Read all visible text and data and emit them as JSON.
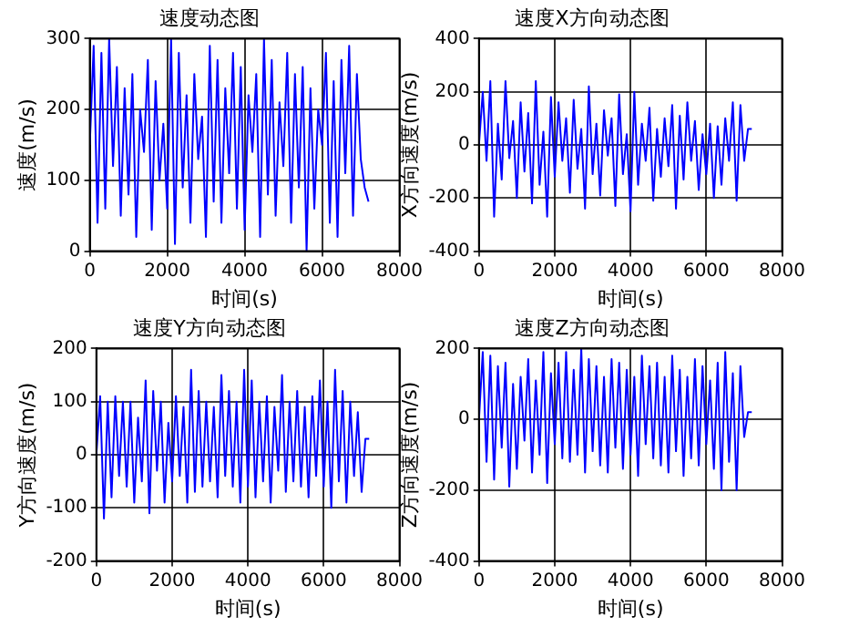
{
  "chart_data": [
    {
      "type": "line",
      "title": "速度动态图",
      "xlabel": "时间(s)",
      "ylabel": "速度(m/s)",
      "xlim": [
        0,
        8000
      ],
      "xticks": [
        0,
        2000,
        4000,
        6000,
        8000
      ],
      "ylim": [
        0,
        300
      ],
      "yticks": [
        0,
        100,
        200,
        300
      ],
      "grid": true,
      "legend": false,
      "marker": "none",
      "line_style": "solid",
      "x": [
        0,
        100,
        200,
        300,
        400,
        500,
        600,
        700,
        800,
        900,
        1000,
        1100,
        1200,
        1300,
        1400,
        1500,
        1600,
        1700,
        1800,
        1900,
        2000,
        2100,
        2200,
        2300,
        2400,
        2500,
        2600,
        2700,
        2800,
        2900,
        3000,
        3100,
        3200,
        3300,
        3400,
        3500,
        3600,
        3700,
        3800,
        3900,
        4000,
        4100,
        4200,
        4300,
        4400,
        4500,
        4600,
        4700,
        4800,
        4900,
        5000,
        5100,
        5200,
        5300,
        5400,
        5500,
        5600,
        5700,
        5800,
        5900,
        6000,
        6100,
        6200,
        6300,
        6400,
        6500,
        6600,
        6700,
        6800,
        6900,
        7000,
        7100,
        7200
      ],
      "series": [
        {
          "color": "#0000ff",
          "values": [
            150,
            290,
            40,
            280,
            60,
            300,
            120,
            260,
            50,
            230,
            80,
            250,
            20,
            200,
            140,
            270,
            30,
            240,
            100,
            180,
            60,
            300,
            10,
            280,
            90,
            220,
            40,
            250,
            130,
            190,
            20,
            290,
            70,
            270,
            40,
            230,
            110,
            280,
            60,
            260,
            30,
            220,
            140,
            250,
            20,
            300,
            80,
            270,
            50,
            210,
            120,
            280,
            40,
            250,
            90,
            260,
            0,
            230,
            60,
            200,
            150,
            280,
            40,
            240,
            20,
            270,
            110,
            290,
            50,
            250,
            130,
            90,
            70
          ]
        }
      ]
    },
    {
      "type": "line",
      "title": "速度X方向动态图",
      "xlabel": "时间(s)",
      "ylabel": "X方向速度(m/s)",
      "xlim": [
        0,
        8000
      ],
      "xticks": [
        0,
        2000,
        4000,
        6000,
        8000
      ],
      "ylim": [
        -400,
        400
      ],
      "yticks": [
        -400,
        -200,
        0,
        200,
        400
      ],
      "grid": true,
      "legend": false,
      "marker": "none",
      "line_style": "solid",
      "x": [
        0,
        100,
        200,
        300,
        400,
        500,
        600,
        700,
        800,
        900,
        1000,
        1100,
        1200,
        1300,
        1400,
        1500,
        1600,
        1700,
        1800,
        1900,
        2000,
        2100,
        2200,
        2300,
        2400,
        2500,
        2600,
        2700,
        2800,
        2900,
        3000,
        3100,
        3200,
        3300,
        3400,
        3500,
        3600,
        3700,
        3800,
        3900,
        4000,
        4100,
        4200,
        4300,
        4400,
        4500,
        4600,
        4700,
        4800,
        4900,
        5000,
        5100,
        5200,
        5300,
        5400,
        5500,
        5600,
        5700,
        5800,
        5900,
        6000,
        6100,
        6200,
        6300,
        6400,
        6500,
        6600,
        6700,
        6800,
        6900,
        7000,
        7100,
        7200
      ],
      "series": [
        {
          "color": "#0000ff",
          "values": [
            0,
            200,
            -60,
            240,
            -270,
            80,
            -130,
            240,
            -50,
            90,
            -200,
            160,
            -100,
            120,
            -220,
            240,
            -150,
            50,
            -270,
            180,
            -120,
            160,
            -60,
            100,
            -180,
            170,
            -90,
            60,
            -240,
            220,
            -110,
            80,
            -190,
            130,
            -40,
            100,
            -230,
            190,
            -110,
            40,
            -250,
            200,
            -150,
            80,
            -60,
            140,
            -210,
            60,
            -120,
            100,
            -80,
            150,
            -240,
            110,
            -130,
            160,
            -60,
            90,
            -170,
            40,
            -110,
            80,
            -200,
            70,
            -150,
            100,
            -60,
            160,
            -210,
            150,
            -60,
            60,
            60
          ]
        }
      ]
    },
    {
      "type": "line",
      "title": "速度Y方向动态图",
      "xlabel": "时间(s)",
      "ylabel": "Y方向速度(m/s)",
      "xlim": [
        0,
        8000
      ],
      "xticks": [
        0,
        2000,
        4000,
        6000,
        8000
      ],
      "ylim": [
        -200,
        200
      ],
      "yticks": [
        -200,
        -100,
        0,
        100,
        200
      ],
      "grid": true,
      "legend": false,
      "marker": "none",
      "line_style": "solid",
      "x": [
        0,
        100,
        200,
        300,
        400,
        500,
        600,
        700,
        800,
        900,
        1000,
        1100,
        1200,
        1300,
        1400,
        1500,
        1600,
        1700,
        1800,
        1900,
        2000,
        2100,
        2200,
        2300,
        2400,
        2500,
        2600,
        2700,
        2800,
        2900,
        3000,
        3100,
        3200,
        3300,
        3400,
        3500,
        3600,
        3700,
        3800,
        3900,
        4000,
        4100,
        4200,
        4300,
        4400,
        4500,
        4600,
        4700,
        4800,
        4900,
        5000,
        5100,
        5200,
        5300,
        5400,
        5500,
        5600,
        5700,
        5800,
        5900,
        6000,
        6100,
        6200,
        6300,
        6400,
        6500,
        6600,
        6700,
        6800,
        6900,
        7000,
        7100,
        7200
      ],
      "series": [
        {
          "color": "#0000ff",
          "values": [
            0,
            110,
            -120,
            100,
            -80,
            110,
            -40,
            100,
            -60,
            100,
            -90,
            70,
            -50,
            140,
            -110,
            120,
            -30,
            100,
            -90,
            60,
            -50,
            110,
            -40,
            90,
            -90,
            160,
            -70,
            120,
            -60,
            100,
            -50,
            90,
            -80,
            150,
            -40,
            120,
            -60,
            100,
            -90,
            160,
            -60,
            140,
            -80,
            100,
            -50,
            110,
            -90,
            90,
            -30,
            150,
            -70,
            100,
            -50,
            120,
            -60,
            90,
            -80,
            110,
            -40,
            140,
            -60,
            100,
            -100,
            160,
            -50,
            120,
            -90,
            100,
            -40,
            80,
            -70,
            30,
            30
          ]
        }
      ]
    },
    {
      "type": "line",
      "title": "速度Z方向动态图",
      "xlabel": "时间(s)",
      "ylabel": "Z方向速度(m/s)",
      "xlim": [
        0,
        8000
      ],
      "xticks": [
        0,
        2000,
        4000,
        6000,
        8000
      ],
      "ylim": [
        -400,
        200
      ],
      "yticks": [
        -400,
        -200,
        0,
        200
      ],
      "grid": true,
      "legend": false,
      "marker": "none",
      "line_style": "solid",
      "x": [
        0,
        100,
        200,
        300,
        400,
        500,
        600,
        700,
        800,
        900,
        1000,
        1100,
        1200,
        1300,
        1400,
        1500,
        1600,
        1700,
        1800,
        1900,
        2000,
        2100,
        2200,
        2300,
        2400,
        2500,
        2600,
        2700,
        2800,
        2900,
        3000,
        3100,
        3200,
        3300,
        3400,
        3500,
        3600,
        3700,
        3800,
        3900,
        4000,
        4100,
        4200,
        4300,
        4400,
        4500,
        4600,
        4700,
        4800,
        4900,
        5000,
        5100,
        5200,
        5300,
        5400,
        5500,
        5600,
        5700,
        5800,
        5900,
        6000,
        6100,
        6200,
        6300,
        6400,
        6500,
        6600,
        6700,
        6800,
        6900,
        7000,
        7100,
        7200
      ],
      "series": [
        {
          "color": "#0000ff",
          "values": [
            0,
            190,
            -120,
            180,
            -170,
            150,
            -80,
            160,
            -190,
            100,
            -140,
            120,
            -60,
            170,
            -150,
            110,
            -100,
            190,
            -180,
            130,
            -70,
            160,
            -110,
            190,
            -120,
            140,
            -100,
            200,
            -150,
            170,
            -90,
            150,
            -130,
            120,
            -150,
            170,
            -80,
            160,
            -140,
            140,
            -100,
            120,
            -160,
            180,
            -70,
            150,
            -110,
            160,
            -130,
            120,
            -150,
            180,
            -90,
            140,
            -160,
            120,
            -110,
            170,
            -130,
            150,
            -70,
            110,
            -140,
            160,
            -200,
            190,
            -120,
            130,
            -200,
            150,
            -50,
            20,
            20
          ]
        }
      ]
    }
  ]
}
